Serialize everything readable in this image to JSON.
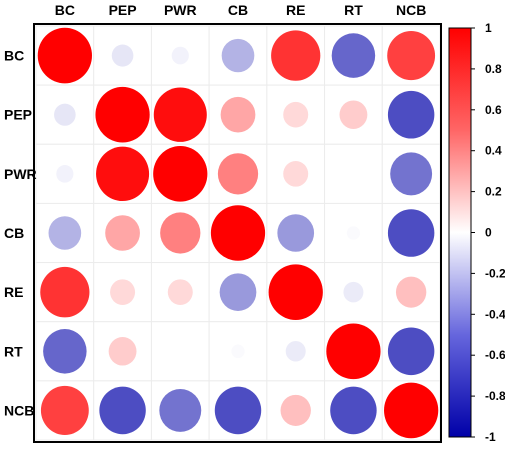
{
  "chart_data": {
    "type": "heatmap",
    "title": "",
    "variables": [
      "BC",
      "PEP",
      "PWR",
      "CB",
      "RE",
      "RT",
      "NCB"
    ],
    "matrix": [
      [
        1.0,
        -0.1,
        -0.05,
        -0.3,
        0.8,
        -0.6,
        0.75
      ],
      [
        -0.1,
        1.0,
        0.95,
        0.35,
        0.15,
        0.2,
        -0.7
      ],
      [
        -0.05,
        0.95,
        1.0,
        0.5,
        0.15,
        0.0,
        -0.55
      ],
      [
        -0.3,
        0.35,
        0.5,
        1.0,
        -0.4,
        -0.02,
        -0.7
      ],
      [
        0.8,
        0.15,
        0.15,
        -0.4,
        1.0,
        -0.08,
        0.25
      ],
      [
        -0.6,
        0.2,
        0.0,
        -0.02,
        -0.08,
        1.0,
        -0.7
      ],
      [
        0.75,
        -0.7,
        -0.55,
        -0.7,
        0.25,
        -0.7,
        1.0
      ]
    ],
    "colorbar": {
      "min": -1,
      "max": 1,
      "ticks": [
        "1",
        "0.8",
        "0.6",
        "0.4",
        "0.2",
        "0",
        "-0.2",
        "-0.4",
        "-0.6",
        "-0.8",
        "-1"
      ],
      "colors": {
        "negative": "#0000a8",
        "zero": "#ffffff",
        "positive": "#ff0000"
      }
    },
    "grid": true,
    "marker": "ellipse sized by magnitude",
    "legend": "right"
  }
}
